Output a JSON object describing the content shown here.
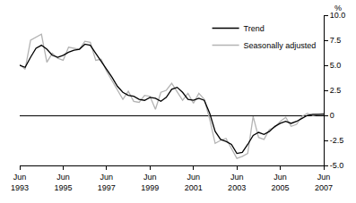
{
  "chart_data": {
    "type": "line",
    "y_label": "%",
    "categories": [
      "Jun 1993",
      null,
      null,
      null,
      null,
      null,
      null,
      null,
      "Jun 1995",
      null,
      null,
      null,
      null,
      null,
      null,
      null,
      "Jun 1997",
      null,
      null,
      null,
      null,
      null,
      null,
      null,
      "Jun 1999",
      null,
      null,
      null,
      null,
      null,
      null,
      null,
      "Jun 2001",
      null,
      null,
      null,
      null,
      null,
      null,
      null,
      "Jun 2003",
      null,
      null,
      null,
      null,
      null,
      null,
      null,
      "Jun 2005",
      null,
      null,
      null,
      null,
      null,
      null,
      null,
      "Jun 2007"
    ],
    "series": [
      {
        "name": "Trend",
        "color": "#000000",
        "values": [
          5.0,
          4.8,
          5.8,
          6.7,
          7.0,
          6.6,
          6.0,
          5.8,
          6.0,
          6.3,
          6.5,
          6.6,
          7.1,
          7.0,
          6.2,
          5.4,
          4.7,
          3.8,
          2.9,
          2.3,
          2.0,
          1.9,
          1.6,
          1.5,
          1.8,
          1.7,
          1.4,
          1.8,
          2.6,
          2.8,
          2.3,
          1.6,
          1.5,
          1.7,
          1.5,
          0.2,
          -1.6,
          -2.4,
          -2.6,
          -2.9,
          -3.8,
          -3.7,
          -2.9,
          -2.0,
          -1.7,
          -1.9,
          -1.6,
          -1.1,
          -0.8,
          -0.6,
          -0.8,
          -0.6,
          -0.3,
          0.0,
          0.1,
          0.1,
          0.1
        ]
      },
      {
        "name": "Seasonally adjusted",
        "color": "#b3b3b3",
        "values": [
          5.1,
          4.6,
          7.5,
          7.8,
          8.1,
          5.3,
          6.2,
          5.7,
          5.5,
          6.8,
          6.7,
          6.6,
          7.4,
          7.3,
          5.5,
          5.6,
          4.4,
          3.5,
          2.5,
          1.6,
          2.4,
          1.4,
          1.3,
          2.0,
          1.9,
          0.6,
          2.3,
          2.5,
          3.2,
          2.3,
          1.5,
          2.2,
          1.2,
          2.2,
          1.6,
          -0.4,
          -2.8,
          -2.5,
          -2.3,
          -3.3,
          -4.3,
          -4.1,
          -3.8,
          -0.1,
          -2.2,
          -2.4,
          -1.4,
          -1.2,
          -0.6,
          -0.2,
          -1.1,
          -0.9,
          -0.1,
          0.2,
          0.0,
          0.1,
          0.2
        ]
      }
    ],
    "ylim": [
      -5,
      10
    ],
    "yticks": [
      {
        "value": -5,
        "label": "-5.0"
      },
      -2.5,
      0,
      2.5,
      {
        "value": 5,
        "label": "5.0"
      },
      7.5,
      {
        "value": 10,
        "label": "10.0"
      }
    ],
    "grid": false,
    "legend": "top right"
  }
}
